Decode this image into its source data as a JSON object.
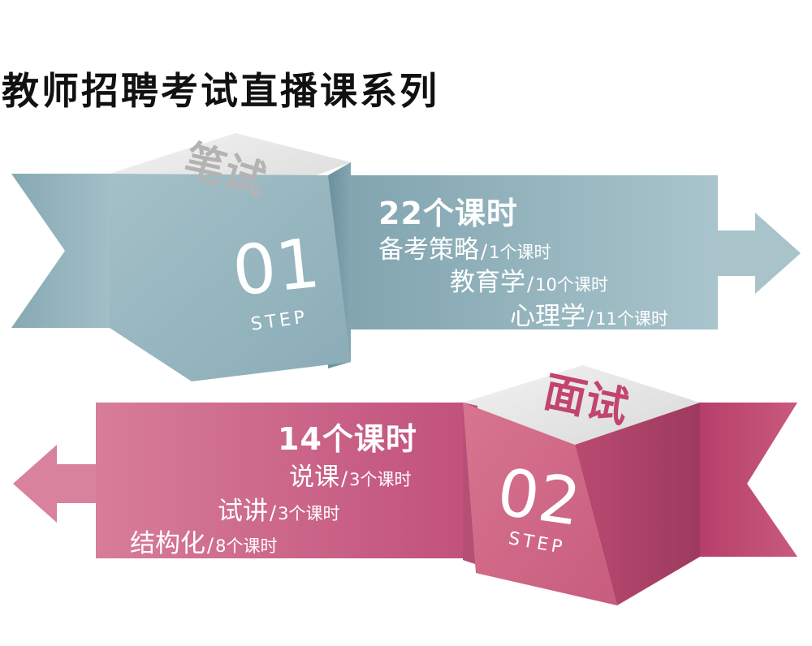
{
  "page_title": "教师招聘考试直播课系列",
  "colors": {
    "written_accent": "#8fb2bd",
    "interview_accent": "#c95a7d",
    "title_color": "#111111"
  },
  "written": {
    "face_label": "笔试",
    "step_number": "01",
    "step_word": "STEP",
    "total_hours": "22个课时",
    "items": [
      {
        "name": "备考策略",
        "sep": "/",
        "hours": "1个课时"
      },
      {
        "name": "教育学",
        "sep": "/",
        "hours": "10个课时"
      },
      {
        "name": "心理学",
        "sep": "/",
        "hours": "11个课时"
      }
    ]
  },
  "interview": {
    "face_label": "面试",
    "step_number": "02",
    "step_word": "STEP",
    "total_hours": "14个课时",
    "items": [
      {
        "name": "说课",
        "sep": "/",
        "hours": "3个课时"
      },
      {
        "name": "试讲",
        "sep": "/",
        "hours": "3个课时"
      },
      {
        "name": "结构化",
        "sep": "/",
        "hours": "8个课时"
      }
    ]
  }
}
